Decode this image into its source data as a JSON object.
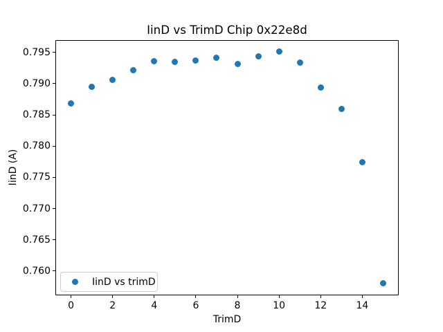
{
  "chart_data": {
    "type": "scatter",
    "title": "IinD vs TrimD Chip 0x22e8d",
    "xlabel": "TrimD",
    "ylabel": "IinD (A)",
    "legend_position": "lower left",
    "grid": false,
    "marker_color": "#1f77b4",
    "xlim": [
      -0.75,
      15.75
    ],
    "ylim": [
      0.75611,
      0.79697
    ],
    "x_ticks": [
      0,
      2,
      4,
      6,
      8,
      10,
      12,
      14
    ],
    "x_tick_labels": [
      "0",
      "2",
      "4",
      "6",
      "8",
      "10",
      "12",
      "14"
    ],
    "y_ticks": [
      0.76,
      0.765,
      0.77,
      0.775,
      0.78,
      0.785,
      0.79,
      0.795
    ],
    "y_tick_labels": [
      "0.760",
      "0.765",
      "0.770",
      "0.775",
      "0.780",
      "0.785",
      "0.790",
      "0.795"
    ],
    "series": [
      {
        "name": "IinD vs trimD",
        "color": "#1f77b4",
        "x": [
          0,
          1,
          2,
          3,
          4,
          5,
          6,
          7,
          8,
          9,
          10,
          11,
          12,
          13,
          14,
          15
        ],
        "y": [
          0.7868,
          0.7895,
          0.7906,
          0.7921,
          0.7936,
          0.7935,
          0.7937,
          0.7942,
          0.7932,
          0.7944,
          0.7951,
          0.7934,
          0.7894,
          0.7859,
          0.7774,
          0.758
        ]
      }
    ]
  }
}
